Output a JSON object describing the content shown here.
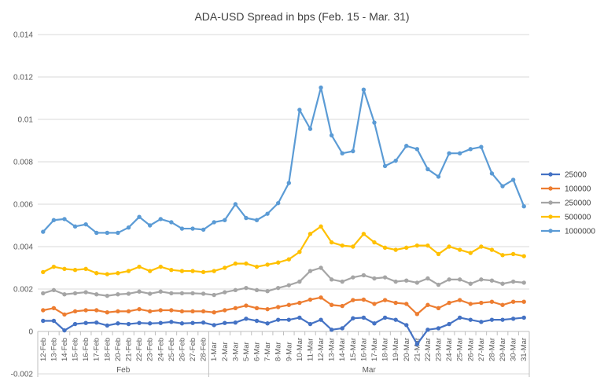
{
  "chart_data": {
    "type": "line",
    "title": "ADA-USD Spread in bps (Feb. 15 - Mar. 31)",
    "xlabel": "",
    "ylabel": "",
    "ylim": [
      -0.002,
      0.014
    ],
    "yticks": [
      "-0.002",
      "0",
      "0.002",
      "0.004",
      "0.006",
      "0.008",
      "0.01",
      "0.012",
      "0.014"
    ],
    "ytick_values": [
      -0.002,
      0,
      0.002,
      0.004,
      0.006,
      0.008,
      0.01,
      0.012,
      0.014
    ],
    "grid": true,
    "legend_position": "right",
    "categories": [
      "12-Feb",
      "13-Feb",
      "14-Feb",
      "15-Feb",
      "16-Feb",
      "17-Feb",
      "18-Feb",
      "20-Feb",
      "21-Feb",
      "22-Feb",
      "23-Feb",
      "24-Feb",
      "25-Feb",
      "26-Feb",
      "27-Feb",
      "28-Feb",
      "1-Mar",
      "2-Mar",
      "3-Mar",
      "5-Mar",
      "6-Mar",
      "7-Mar",
      "8-Mar",
      "9-Mar",
      "10-Mar",
      "11-Mar",
      "12-Mar",
      "13-Mar",
      "14-Mar",
      "15-Mar",
      "16-Mar",
      "17-Mar",
      "18-Mar",
      "19-Mar",
      "20-Mar",
      "21-Mar",
      "22-Mar",
      "23-Mar",
      "24-Mar",
      "25-Mar",
      "26-Mar",
      "27-Mar",
      "28-Mar",
      "29-Mar",
      "30-Mar",
      "31-Mar"
    ],
    "groups": [
      {
        "label": "Feb",
        "start": 0,
        "end": 15
      },
      {
        "label": "Mar",
        "start": 16,
        "end": 45
      }
    ],
    "series": [
      {
        "name": "25000",
        "color": "#4472c4",
        "values": [
          0.0005,
          0.0005,
          5e-05,
          0.00035,
          0.0004,
          0.00042,
          0.00028,
          0.00038,
          0.00035,
          0.0004,
          0.00038,
          0.0004,
          0.00045,
          0.00038,
          0.0004,
          0.00042,
          0.0003,
          0.0004,
          0.00042,
          0.0006,
          0.0005,
          0.00038,
          0.00055,
          0.00055,
          0.00065,
          0.00035,
          0.00055,
          8e-05,
          0.00015,
          0.00062,
          0.00065,
          0.00038,
          0.00065,
          0.00055,
          0.0003,
          -0.0006,
          8e-05,
          0.00015,
          0.00035,
          0.00065,
          0.00055,
          0.00045,
          0.00055,
          0.00055,
          0.0006,
          0.00065
        ]
      },
      {
        "name": "100000",
        "color": "#ed7d31",
        "values": [
          0.001,
          0.0011,
          0.0008,
          0.00095,
          0.001,
          0.001,
          0.0009,
          0.00095,
          0.00095,
          0.00105,
          0.00095,
          0.001,
          0.001,
          0.00095,
          0.00095,
          0.00095,
          0.0009,
          0.001,
          0.0011,
          0.00122,
          0.0011,
          0.00105,
          0.00115,
          0.00125,
          0.00135,
          0.0015,
          0.0016,
          0.00125,
          0.0012,
          0.00148,
          0.0015,
          0.0013,
          0.00148,
          0.00135,
          0.0013,
          0.00082,
          0.00125,
          0.0011,
          0.00135,
          0.00148,
          0.0013,
          0.00135,
          0.0014,
          0.00125,
          0.0014,
          0.0014
        ]
      },
      {
        "name": "250000",
        "color": "#a5a5a5",
        "values": [
          0.0018,
          0.00195,
          0.00175,
          0.0018,
          0.00185,
          0.00175,
          0.00168,
          0.00175,
          0.00178,
          0.00188,
          0.00178,
          0.00188,
          0.0018,
          0.0018,
          0.0018,
          0.00178,
          0.00172,
          0.00185,
          0.00195,
          0.00205,
          0.00195,
          0.0019,
          0.00205,
          0.00218,
          0.00235,
          0.00285,
          0.003,
          0.00245,
          0.00235,
          0.00255,
          0.00265,
          0.0025,
          0.00255,
          0.00235,
          0.0024,
          0.0023,
          0.0025,
          0.0022,
          0.00245,
          0.00245,
          0.00225,
          0.00245,
          0.0024,
          0.00225,
          0.00235,
          0.0023
        ]
      },
      {
        "name": "500000",
        "color": "#ffc000",
        "values": [
          0.0028,
          0.00305,
          0.00295,
          0.0029,
          0.00295,
          0.00275,
          0.0027,
          0.00275,
          0.00285,
          0.00305,
          0.00285,
          0.00305,
          0.0029,
          0.00285,
          0.00285,
          0.0028,
          0.00285,
          0.003,
          0.0032,
          0.0032,
          0.00305,
          0.00315,
          0.00325,
          0.0034,
          0.00375,
          0.0046,
          0.00495,
          0.0042,
          0.00405,
          0.004,
          0.0046,
          0.0042,
          0.00395,
          0.00385,
          0.00395,
          0.00405,
          0.00405,
          0.00365,
          0.004,
          0.00385,
          0.0037,
          0.004,
          0.00385,
          0.0036,
          0.00365,
          0.00355
        ]
      },
      {
        "name": "1000000",
        "color": "#5b9bd5",
        "values": [
          0.0047,
          0.00525,
          0.0053,
          0.00495,
          0.00505,
          0.00465,
          0.00465,
          0.00465,
          0.0049,
          0.0054,
          0.005,
          0.0053,
          0.00515,
          0.00485,
          0.00485,
          0.0048,
          0.00515,
          0.00525,
          0.006,
          0.00535,
          0.00525,
          0.00555,
          0.00605,
          0.007,
          0.01045,
          0.00955,
          0.0115,
          0.00925,
          0.0084,
          0.0085,
          0.0114,
          0.00985,
          0.0078,
          0.00805,
          0.00875,
          0.0086,
          0.00765,
          0.0073,
          0.0084,
          0.0084,
          0.0086,
          0.0087,
          0.00745,
          0.00685,
          0.00715,
          0.0059
        ]
      }
    ]
  }
}
